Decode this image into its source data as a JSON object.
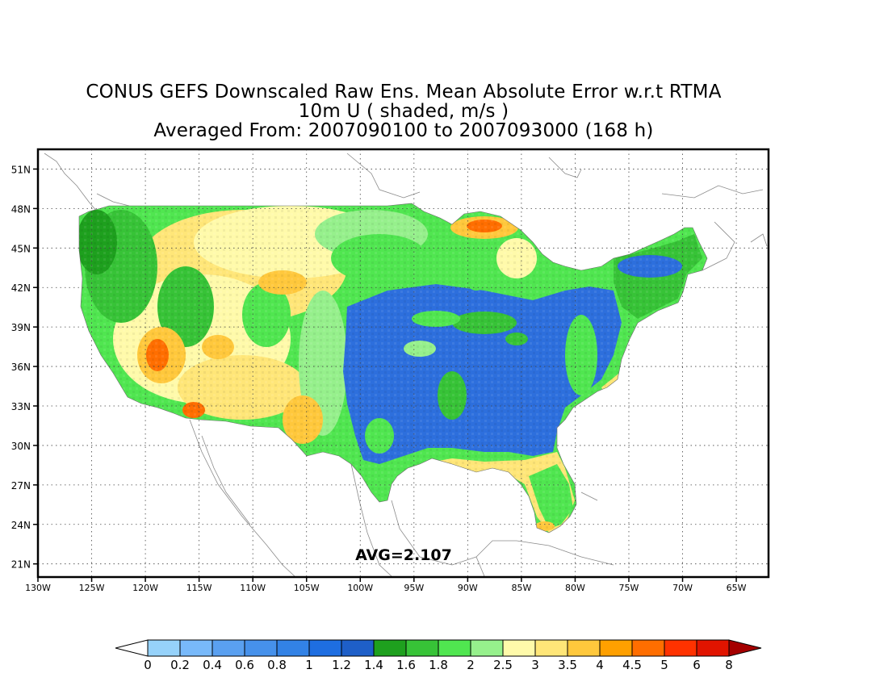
{
  "title": {
    "line1": "CONUS GEFS Downscaled Raw Ens. Mean Absolute Error w.r.t RTMA",
    "line2": "10m U ( shaded, m/s )",
    "line3": "Averaged From: 2007090100 to 2007093000 (168 h)"
  },
  "map": {
    "lat_labels": [
      "51N",
      "48N",
      "45N",
      "42N",
      "39N",
      "36N",
      "33N",
      "30N",
      "27N",
      "24N",
      "21N"
    ],
    "lat_values": [
      51,
      48,
      45,
      42,
      39,
      36,
      33,
      30,
      27,
      24,
      21
    ],
    "lon_labels": [
      "130W",
      "125W",
      "120W",
      "115W",
      "110W",
      "105W",
      "100W",
      "95W",
      "90W",
      "85W",
      "80W",
      "75W",
      "70W",
      "65W"
    ],
    "lon_values": [
      130,
      125,
      120,
      115,
      110,
      105,
      100,
      95,
      90,
      85,
      80,
      75,
      70,
      65
    ],
    "lon_range": [
      130,
      62
    ],
    "lat_range": [
      20,
      52.5
    ],
    "grid": "dotted",
    "annotation": "AVG=2.107"
  },
  "colorbar": {
    "labels": [
      "0",
      "0.2",
      "0.4",
      "0.6",
      "0.8",
      "1",
      "1.2",
      "1.4",
      "1.6",
      "1.8",
      "2",
      "2.5",
      "3",
      "3.5",
      "4",
      "4.5",
      "5",
      "6",
      "8"
    ],
    "colors": [
      "#ffffff",
      "#96d2fa",
      "#78b9fa",
      "#5aa0f0",
      "#4691eb",
      "#3282e6",
      "#1e6ee1",
      "#1e5fc8",
      "#1ea01e",
      "#37c337",
      "#50e650",
      "#96f08c",
      "#fffaaa",
      "#ffe678",
      "#ffc83c",
      "#ffa000",
      "#ff6e00",
      "#ff3200",
      "#e11400",
      "#a50000"
    ]
  },
  "field_colors": {
    "blue": "#2d6fdd",
    "dark_green": "#1ea01e",
    "green": "#37c337",
    "light_green": "#50e650",
    "pale_green": "#96f08c",
    "pale_yellow": "#fffaaa",
    "yellow": "#ffe678",
    "orange": "#ffc83c",
    "red_orange": "#ff6e00",
    "red": "#ff3200"
  }
}
